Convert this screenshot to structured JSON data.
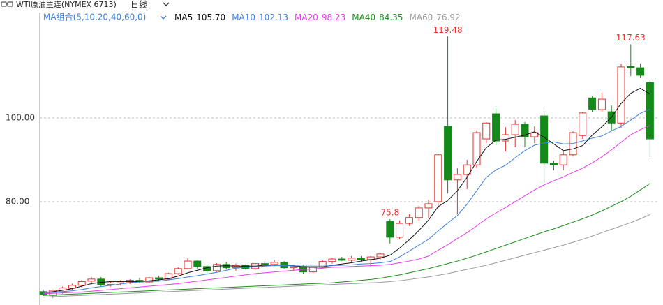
{
  "chart_data": {
    "type": "candlestick",
    "title": "WTI原油主连(NYMEX 6713)",
    "period": "日线",
    "ma_group_label": "MA组合(5,10,20,40,60,0)",
    "up_color": "#e8312e",
    "down_color": "#16891b",
    "open": [
      58.5,
      57.6,
      58.5,
      59.3,
      60,
      61,
      61.5,
      60.2,
      60.6,
      60.8,
      61.2,
      60.8,
      61.8,
      61.5,
      62.8,
      64,
      65.8,
      64.5,
      63.5,
      65,
      64.2,
      64.8,
      64,
      65.2,
      65,
      65.5,
      64.2,
      64.5,
      63.2,
      64.3,
      65.7,
      66.3,
      66,
      66.5,
      66.2,
      66.8,
      75.3,
      71.5,
      74.8,
      76.2,
      78.5,
      80,
      98,
      85.2,
      86.5,
      88.8,
      95,
      101,
      94.5,
      96,
      98.5,
      95.5,
      100.5,
      89.2,
      88.8,
      91.2,
      95.8,
      104.8,
      102,
      101.5,
      98.8,
      112.3,
      112,
      108.5
    ],
    "high": [
      59,
      59,
      59.7,
      60.4,
      61.3,
      62,
      62,
      61,
      61.2,
      61.5,
      61.8,
      62,
      62.3,
      63,
      64.3,
      66.48,
      66,
      65,
      65.3,
      65.6,
      65.2,
      65,
      65.4,
      65.8,
      66,
      65.8,
      64.8,
      64.8,
      64.6,
      66,
      66.5,
      66.8,
      67,
      67,
      67,
      67.8,
      75.8,
      75.5,
      77,
      79,
      80.5,
      91.5,
      119.48,
      88,
      90,
      97,
      99,
      102.3,
      97.8,
      99.5,
      99,
      98,
      101.6,
      89.8,
      92,
      96.8,
      101.5,
      105.2,
      106,
      103,
      113,
      117.63,
      113,
      109
    ],
    "low": [
      57.5,
      57,
      58,
      58.8,
      59.5,
      60.2,
      59.8,
      59.7,
      60,
      60.3,
      60.5,
      60.5,
      61,
      61.2,
      62.5,
      63.8,
      64,
      62.8,
      63.2,
      63.8,
      63.5,
      63.8,
      63.6,
      64.5,
      64.6,
      64,
      63.5,
      62.8,
      62.9,
      64,
      65.2,
      65.8,
      65.5,
      65.7,
      64.5,
      66.2,
      70,
      71,
      74.2,
      75.5,
      76,
      78.5,
      82,
      77,
      83,
      88,
      94,
      93.5,
      92,
      93,
      93,
      94,
      84.5,
      87.5,
      87.5,
      90.8,
      95,
      101.5,
      101.5,
      97,
      97.5,
      110,
      109.5,
      90.7
    ],
    "close": [
      57.8,
      58.8,
      59.4,
      60,
      60.9,
      61.5,
      60.2,
      60.6,
      60.9,
      61.2,
      60.8,
      61.8,
      61.5,
      62.8,
      64,
      65.8,
      64.5,
      63.5,
      65,
      64.2,
      64.8,
      64,
      65.2,
      65,
      65.5,
      64.2,
      64.5,
      63.2,
      64.3,
      65.7,
      66.3,
      66,
      66.5,
      66.2,
      66.8,
      67.5,
      71.5,
      74.8,
      76.2,
      78.5,
      79.5,
      91.2,
      85.2,
      86.5,
      88.8,
      96.5,
      98.8,
      94.5,
      96,
      98.5,
      95.5,
      96.5,
      89.2,
      88.8,
      91.2,
      96.5,
      101.2,
      102.1,
      104.5,
      98.8,
      112.2,
      112,
      110.2,
      95
    ],
    "ma": [
      {
        "name": "MA5",
        "color": "#111111",
        "value": 105.7,
        "value_label": "105.70",
        "values": [
          58.3,
          58.5,
          58.8,
          59.2,
          59.8,
          60.4,
          60.7,
          60.9,
          60.9,
          60.9,
          60.9,
          61.1,
          61.3,
          61.6,
          62.2,
          63,
          63.6,
          64.2,
          64.6,
          64.7,
          64.6,
          64.6,
          64.6,
          64.8,
          64.9,
          64.9,
          64.7,
          64.4,
          64.3,
          64.4,
          64.8,
          65.1,
          65.4,
          65.8,
          66.1,
          66.5,
          67.2,
          68.9,
          70.9,
          73.1,
          75.6,
          78.8,
          80.3,
          82.6,
          85.8,
          89.6,
          92.9,
          94.7,
          94.9,
          95.4,
          95.9,
          96.7,
          95.4,
          93.8,
          92.2,
          92.6,
          93.4,
          95.9,
          97.9,
          100.2,
          103.5,
          105.9,
          107.1,
          105.7
        ]
      },
      {
        "name": "MA10",
        "color": "#3d7fd9",
        "value": 102.13,
        "value_label": "102.13",
        "values": [
          58.2,
          58.3,
          58.5,
          58.7,
          59.0,
          59.4,
          59.7,
          60.0,
          60.3,
          60.6,
          60.8,
          60.9,
          61.0,
          61.3,
          61.6,
          62.0,
          62.3,
          62.7,
          63.1,
          63.6,
          64.1,
          64.3,
          64.4,
          64.6,
          64.7,
          64.7,
          64.7,
          64.6,
          64.6,
          64.6,
          64.7,
          64.8,
          64.9,
          65.1,
          65.2,
          65.4,
          65.7,
          66.8,
          68.2,
          69.6,
          71.0,
          73.0,
          74.9,
          76.7,
          79.4,
          82.6,
          85.8,
          87.6,
          88.7,
          90.5,
          92.2,
          93.5,
          94.0,
          94.3,
          93.8,
          93.9,
          94.5,
          95.2,
          95.7,
          96.9,
          98.0,
          99.5,
          101.1,
          102.13
        ]
      },
      {
        "name": "MA20",
        "color": "#e63ce6",
        "value": 98.23,
        "value_label": "98.23",
        "values": [
          58.0,
          58.1,
          58.2,
          58.3,
          58.4,
          58.6,
          58.8,
          59.0,
          59.2,
          59.4,
          59.6,
          59.8,
          60.0,
          60.2,
          60.4,
          60.7,
          61.0,
          61.3,
          61.6,
          61.9,
          62.2,
          62.5,
          62.8,
          63.0,
          63.2,
          63.4,
          63.6,
          63.8,
          63.9,
          64.1,
          64.3,
          64.4,
          64.5,
          64.6,
          64.7,
          64.8,
          65.0,
          65.4,
          65.8,
          66.3,
          67.0,
          68.4,
          69.7,
          71.2,
          72.6,
          74.2,
          75.9,
          77.3,
          78.6,
          80.0,
          81.4,
          82.8,
          84.0,
          85.0,
          85.9,
          87.0,
          88.0,
          89.3,
          90.7,
          92.4,
          94.2,
          96.0,
          97.2,
          98.23
        ]
      },
      {
        "name": "MA40",
        "color": "#1b8f1b",
        "value": 84.35,
        "value_label": "84.35",
        "values": [
          57.6,
          57.7,
          57.8,
          57.9,
          58.0,
          58.1,
          58.2,
          58.3,
          58.4,
          58.5,
          58.6,
          58.7,
          58.8,
          58.9,
          59.0,
          59.1,
          59.2,
          59.3,
          59.4,
          59.5,
          59.6,
          59.7,
          59.8,
          59.9,
          60.0,
          60.1,
          60.2,
          60.3,
          60.4,
          60.5,
          60.6,
          60.8,
          61.0,
          61.2,
          61.4,
          61.7,
          62.1,
          62.5,
          63.0,
          63.5,
          64.0,
          64.6,
          65.2,
          65.8,
          66.5,
          67.2,
          68.0,
          68.8,
          69.6,
          70.4,
          71.2,
          72.0,
          72.8,
          73.5,
          74.3,
          75.1,
          75.9,
          76.8,
          77.8,
          78.9,
          80.0,
          81.3,
          82.8,
          84.35
        ]
      },
      {
        "name": "MA60",
        "color": "#9a9a9a",
        "value": 76.92,
        "value_label": "76.92",
        "values": [
          57.2,
          57.3,
          57.4,
          57.5,
          57.6,
          57.7,
          57.8,
          57.9,
          58.0,
          58.1,
          58.2,
          58.3,
          58.4,
          58.5,
          58.6,
          58.7,
          58.8,
          58.9,
          59.0,
          59.1,
          59.2,
          59.3,
          59.4,
          59.5,
          59.6,
          59.7,
          59.8,
          59.9,
          60.0,
          60.1,
          60.2,
          60.3,
          60.4,
          60.5,
          60.6,
          60.7,
          60.9,
          61.1,
          61.4,
          61.7,
          62.0,
          62.4,
          62.8,
          63.3,
          63.8,
          64.3,
          64.8,
          65.4,
          66.0,
          66.6,
          67.2,
          67.8,
          68.4,
          69.0,
          69.6,
          70.3,
          71.0,
          71.8,
          72.6,
          73.4,
          74.2,
          75.0,
          75.9,
          76.92
        ]
      }
    ],
    "ylim": [
      55.3,
      125.2
    ],
    "yticks": [
      {
        "value": 80,
        "label": "80.00"
      },
      {
        "value": 100,
        "label": "100.00"
      }
    ],
    "grid": true
  }
}
